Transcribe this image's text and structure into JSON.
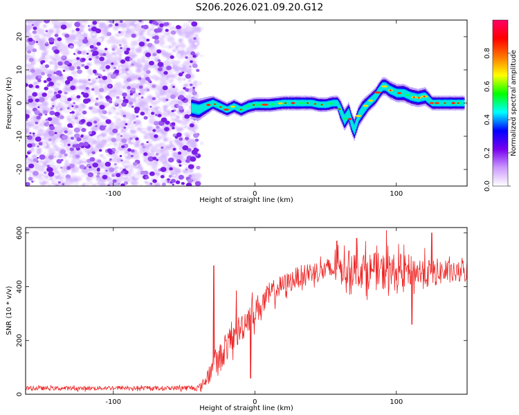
{
  "chart_data": [
    {
      "type": "heatmap",
      "title": "S206.2026.021.09.20.G12",
      "xlabel": "Height of straight line (km)",
      "ylabel": "Frequency (Hz)",
      "xlim": [
        -162,
        150
      ],
      "ylim": [
        -25,
        25
      ],
      "xticks": [
        -100,
        0,
        100
      ],
      "yticks": [
        -20,
        -10,
        0,
        10,
        20
      ],
      "noise_region_km": [
        -162,
        -40
      ],
      "ridge": {
        "x": [
          -45,
          -40,
          -35,
          -30,
          -25,
          -20,
          -15,
          -10,
          -5,
          0,
          10,
          20,
          30,
          40,
          45,
          50,
          55,
          58,
          60,
          63,
          66,
          68,
          70,
          73,
          76,
          80,
          85,
          88,
          90,
          92,
          95,
          100,
          105,
          110,
          115,
          120,
          125,
          130,
          135,
          140,
          148
        ],
        "y": [
          -1.5,
          -2,
          -1,
          0,
          -1,
          -2,
          -1,
          -2,
          -1,
          -0.5,
          -0.5,
          0,
          0,
          0,
          -0.5,
          -0.5,
          0,
          0,
          -2,
          -5,
          -3,
          -6,
          -8,
          -4,
          -2,
          0,
          2,
          4,
          5,
          5,
          4,
          3,
          3,
          2,
          1.5,
          2,
          0,
          0,
          0,
          0,
          0
        ],
        "width_hz": [
          3,
          3,
          2.5,
          2,
          2,
          2,
          2,
          2,
          2,
          2,
          2,
          2,
          2,
          2,
          2,
          2,
          2,
          2,
          3,
          3,
          3,
          3,
          3,
          3,
          3,
          2.5,
          2.5,
          2.5,
          2.5,
          2.5,
          2.5,
          2.5,
          2.5,
          2.5,
          2.5,
          2.5,
          2,
          2,
          2,
          2,
          2
        ]
      },
      "colorbar": {
        "label": "Normalized spectral amplitude",
        "range": [
          0,
          1
        ],
        "ticks": [
          "0.0",
          "0.2",
          "0.4",
          "0.6",
          "0.8"
        ],
        "tick_values": [
          0,
          0.2,
          0.4,
          0.6,
          0.8
        ],
        "colors": [
          "#ffffff",
          "#cc99ff",
          "#7700ee",
          "#0000ff",
          "#00ffff",
          "#00ff00",
          "#ffff00",
          "#ff7700",
          "#ff0000",
          "#ff0066"
        ]
      }
    },
    {
      "type": "line",
      "xlabel": "Height of straight line (km)",
      "ylabel": "SNR (10 * v/v)",
      "xlim": [
        -162,
        150
      ],
      "ylim": [
        0,
        620
      ],
      "xticks": [
        -100,
        0,
        100
      ],
      "yticks": [
        0,
        200,
        400,
        600
      ],
      "color": "#ee2222",
      "series": [
        {
          "name": "SNR",
          "x": [
            -162,
            -140,
            -120,
            -100,
            -80,
            -60,
            -40,
            -38,
            -36,
            -34,
            -32,
            -30,
            -28,
            -26,
            -24,
            -22,
            -20,
            -15,
            -10,
            -5,
            0,
            5,
            10,
            15,
            20,
            25,
            30,
            35,
            40,
            50,
            60,
            70,
            80,
            90,
            100,
            110,
            120,
            130,
            140,
            150
          ],
          "y": [
            22,
            22,
            22,
            24,
            22,
            23,
            24,
            30,
            42,
            60,
            80,
            100,
            120,
            125,
            140,
            160,
            175,
            210,
            245,
            285,
            310,
            335,
            365,
            390,
            405,
            420,
            435,
            445,
            455,
            460,
            465,
            470,
            460,
            455,
            455,
            460,
            450,
            455,
            450,
            455
          ],
          "spread": [
            8,
            8,
            8,
            8,
            8,
            8,
            12,
            15,
            20,
            35,
            40,
            45,
            50,
            50,
            55,
            55,
            55,
            55,
            60,
            55,
            55,
            50,
            45,
            45,
            40,
            40,
            40,
            40,
            40,
            45,
            60,
            70,
            70,
            70,
            70,
            60,
            60,
            50,
            40,
            40
          ],
          "spikes": [
            {
              "x": -29,
              "y": 478
            },
            {
              "x": -13,
              "y": 385
            },
            {
              "x": -3,
              "y": 60
            },
            {
              "x": 58,
              "y": 570
            },
            {
              "x": 72,
              "y": 580
            },
            {
              "x": 93,
              "y": 610
            },
            {
              "x": 125,
              "y": 600
            },
            {
              "x": 111,
              "y": 260
            }
          ]
        }
      ]
    }
  ]
}
